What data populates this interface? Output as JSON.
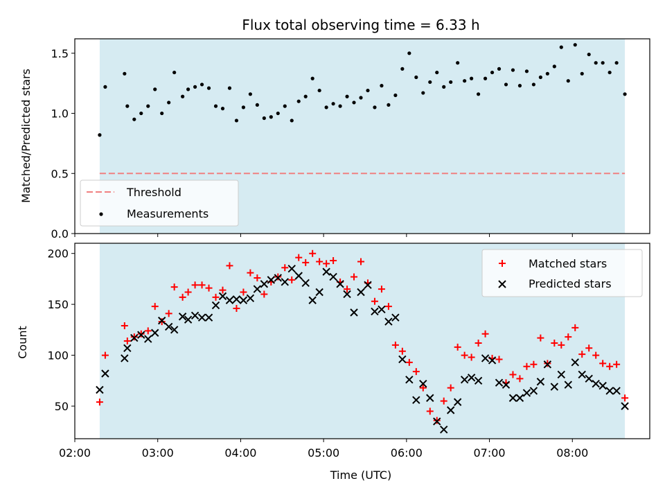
{
  "title": "Flux total observing time = 6.33 h",
  "colors": {
    "span": "#add8e6",
    "threshold": "#f08080",
    "matched": "#ff0000",
    "predicted": "#000000",
    "measure": "#000000"
  },
  "chart_data": [
    {
      "type": "scatter",
      "ylabel": "Matched/Predicted stars",
      "xlabel": "",
      "ylim": [
        0,
        1.62
      ],
      "yticks": [
        0.0,
        0.5,
        1.0,
        1.5
      ],
      "ytick_labels": [
        "0.0",
        "0.5",
        "1.0",
        "1.5"
      ],
      "xlim": [
        "02:00",
        "08:56"
      ],
      "span": [
        "02:18",
        "08:38"
      ],
      "threshold": 0.5,
      "legend_position": "lower-left",
      "legend": [
        "Threshold",
        "Measurements"
      ],
      "series": [
        {
          "name": "Measurements",
          "x": [
            "02:18",
            "02:22",
            "02:36",
            "02:38",
            "02:43",
            "02:48",
            "02:53",
            "02:58",
            "03:03",
            "03:08",
            "03:12",
            "03:18",
            "03:22",
            "03:27",
            "03:32",
            "03:37",
            "03:42",
            "03:47",
            "03:52",
            "03:57",
            "04:02",
            "04:07",
            "04:12",
            "04:17",
            "04:22",
            "04:27",
            "04:32",
            "04:37",
            "04:42",
            "04:47",
            "04:52",
            "04:57",
            "05:02",
            "05:07",
            "05:12",
            "05:17",
            "05:22",
            "05:27",
            "05:32",
            "05:37",
            "05:42",
            "05:47",
            "05:52",
            "05:57",
            "06:02",
            "06:07",
            "06:12",
            "06:17",
            "06:22",
            "06:27",
            "06:32",
            "06:37",
            "06:42",
            "06:47",
            "06:52",
            "06:57",
            "07:02",
            "07:07",
            "07:12",
            "07:17",
            "07:22",
            "07:27",
            "07:32",
            "07:37",
            "07:42",
            "07:47",
            "07:52",
            "07:57",
            "08:02",
            "08:07",
            "08:12",
            "08:17",
            "08:22",
            "08:27",
            "08:32",
            "08:38"
          ],
          "y": [
            0.82,
            1.22,
            1.33,
            1.06,
            0.95,
            1.0,
            1.06,
            1.2,
            1.0,
            1.09,
            1.34,
            1.14,
            1.2,
            1.22,
            1.24,
            1.21,
            1.06,
            1.04,
            1.21,
            0.94,
            1.05,
            1.16,
            1.07,
            0.96,
            0.97,
            1.0,
            1.06,
            0.94,
            1.1,
            1.14,
            1.29,
            1.19,
            1.05,
            1.08,
            1.06,
            1.14,
            1.09,
            1.13,
            1.19,
            1.05,
            1.23,
            1.07,
            1.15,
            1.37,
            1.5,
            1.3,
            1.17,
            1.26,
            1.34,
            1.22,
            1.26,
            1.42,
            1.27,
            1.29,
            1.16,
            1.29,
            1.34,
            1.37,
            1.24,
            1.36,
            1.23,
            1.35,
            1.24,
            1.3,
            1.33,
            1.39,
            1.55,
            1.27,
            1.57,
            1.33,
            1.49,
            1.42,
            1.42,
            1.34,
            1.42,
            1.16
          ]
        }
      ]
    },
    {
      "type": "scatter",
      "ylabel": "Count",
      "xlabel": "Time (UTC)",
      "ylim": [
        18,
        210
      ],
      "yticks": [
        50,
        100,
        150,
        200
      ],
      "ytick_labels": [
        "50",
        "100",
        "150",
        "200"
      ],
      "xlim": [
        "02:00",
        "08:56"
      ],
      "xticks": [
        "02:00",
        "03:00",
        "04:00",
        "05:00",
        "06:00",
        "07:00",
        "08:00"
      ],
      "span": [
        "02:18",
        "08:38"
      ],
      "legend_position": "upper-right",
      "legend": [
        "Matched stars",
        "Predicted stars"
      ],
      "x": [
        "02:18",
        "02:22",
        "02:36",
        "02:38",
        "02:43",
        "02:48",
        "02:53",
        "02:58",
        "03:03",
        "03:08",
        "03:12",
        "03:18",
        "03:22",
        "03:27",
        "03:32",
        "03:37",
        "03:42",
        "03:47",
        "03:52",
        "03:57",
        "04:02",
        "04:07",
        "04:12",
        "04:17",
        "04:22",
        "04:27",
        "04:32",
        "04:37",
        "04:42",
        "04:47",
        "04:52",
        "04:57",
        "05:02",
        "05:07",
        "05:12",
        "05:17",
        "05:22",
        "05:27",
        "05:32",
        "05:37",
        "05:42",
        "05:47",
        "05:52",
        "05:57",
        "06:02",
        "06:07",
        "06:12",
        "06:17",
        "06:22",
        "06:27",
        "06:32",
        "06:37",
        "06:42",
        "06:47",
        "06:52",
        "06:57",
        "07:02",
        "07:07",
        "07:12",
        "07:17",
        "07:22",
        "07:27",
        "07:32",
        "07:37",
        "07:42",
        "07:47",
        "07:52",
        "07:57",
        "08:02",
        "08:07",
        "08:12",
        "08:17",
        "08:22",
        "08:27",
        "08:32",
        "08:38"
      ],
      "series": [
        {
          "name": "Matched stars",
          "values": [
            54,
            100,
            129,
            114,
            118,
            121,
            124,
            148,
            133,
            141,
            167,
            157,
            162,
            169,
            169,
            166,
            157,
            164,
            188,
            146,
            162,
            181,
            176,
            160,
            172,
            177,
            186,
            174,
            196,
            191,
            200,
            192,
            190,
            193,
            172,
            165,
            177,
            192,
            171,
            153,
            165,
            148,
            110,
            104,
            93,
            84,
            68,
            45,
            36,
            55,
            68,
            108,
            100,
            98,
            112,
            121,
            97,
            96,
            73,
            81,
            77,
            89,
            91,
            117,
            92,
            112,
            110,
            118,
            127,
            101,
            107,
            100,
            92,
            89,
            91,
            58
          ]
        },
        {
          "name": "Predicted stars",
          "values": [
            66,
            82,
            97,
            107,
            117,
            120,
            116,
            122,
            134,
            128,
            125,
            138,
            135,
            139,
            137,
            137,
            149,
            158,
            154,
            155,
            154,
            156,
            165,
            170,
            174,
            176,
            172,
            185,
            178,
            171,
            154,
            162,
            182,
            177,
            170,
            160,
            142,
            162,
            169,
            143,
            145,
            133,
            137,
            96,
            76,
            56,
            72,
            58,
            35,
            27,
            46,
            54,
            76,
            78,
            75,
            97,
            95,
            73,
            71,
            58,
            58,
            63,
            65,
            74,
            91,
            69,
            81,
            71,
            93,
            81,
            77,
            72,
            70,
            65,
            65,
            50
          ]
        }
      ]
    }
  ]
}
